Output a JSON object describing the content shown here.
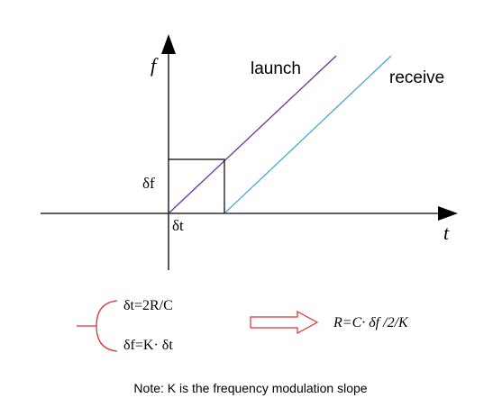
{
  "axes": {
    "y_label": "f",
    "x_label": "t"
  },
  "lines": {
    "launch": "launch",
    "receive": "receive"
  },
  "marks": {
    "delta_f": "δf",
    "delta_t": "δt"
  },
  "equations": [
    "δt=2R/C",
    "δf=K· δt"
  ],
  "result": "R=C· δf /2/K",
  "note": "Note: K is the frequency modulation slope"
}
